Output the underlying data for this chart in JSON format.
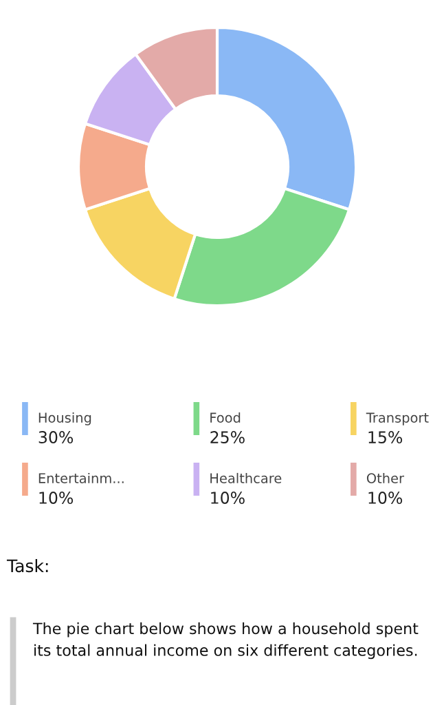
{
  "chart_data": {
    "type": "donut",
    "categories": [
      "Housing",
      "Food",
      "Transport",
      "Entertainm...",
      "Healthcare",
      "Other"
    ],
    "values": [
      30,
      25,
      15,
      10,
      10,
      10
    ],
    "colors": [
      "#8ab8f5",
      "#7ed98a",
      "#f7d462",
      "#f5aa8c",
      "#c9b2f2",
      "#e3aaa8"
    ],
    "value_labels": [
      "30%",
      "25%",
      "15%",
      "10%",
      "10%",
      "10%"
    ],
    "legend": "bottom",
    "annotations": [
      "Task:",
      "The pie chart below shows how a household spent its total annual income on six different categories."
    ]
  }
}
